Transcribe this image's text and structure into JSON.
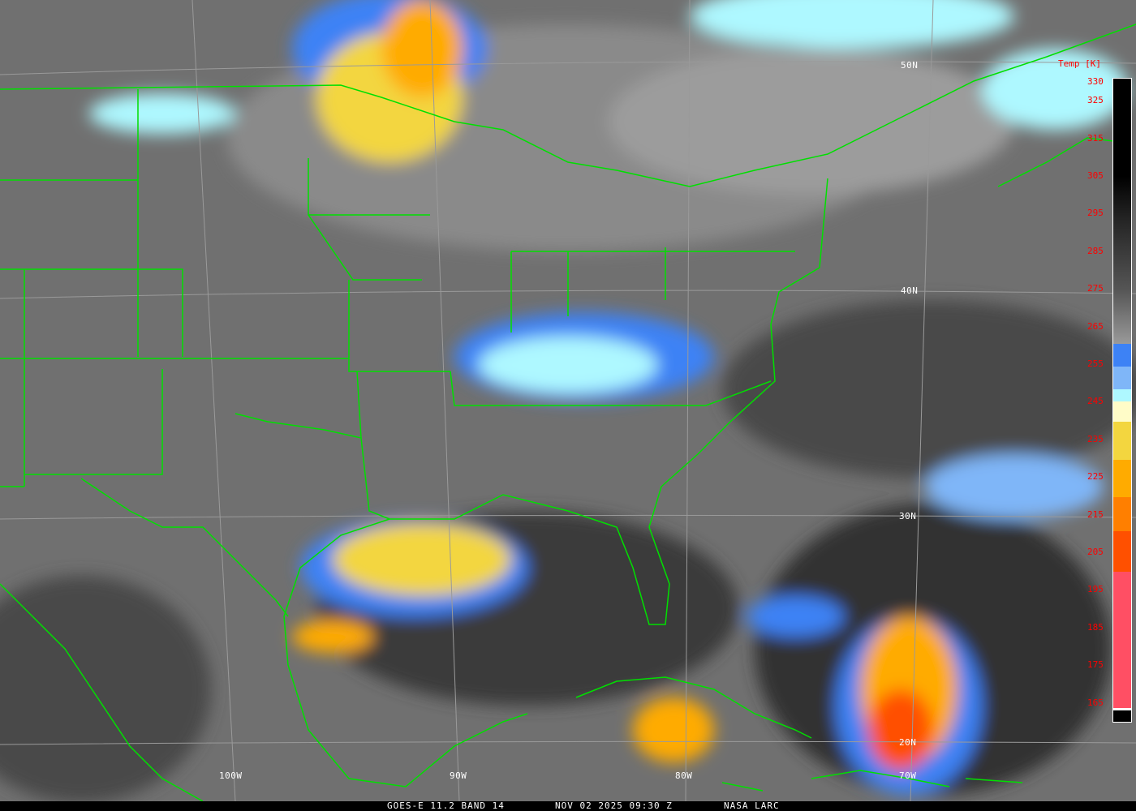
{
  "map": {
    "latitude_labels": [
      "50N",
      "40N",
      "30N",
      "20N"
    ],
    "longitude_labels": [
      "100W",
      "90W",
      "80W",
      "70W"
    ],
    "boundary_color": "#00e000",
    "grid_color": "#9a9a9a"
  },
  "legend": {
    "title": "Temp [K]",
    "ticks": [
      "330",
      "325",
      "315",
      "305",
      "295",
      "285",
      "275",
      "265",
      "255",
      "245",
      "235",
      "225",
      "215",
      "205",
      "195",
      "185",
      "175",
      "165"
    ],
    "colors": [
      "#000000",
      "#9a9a9a",
      "#3d82f5",
      "#7fb6f8",
      "#aef8ff",
      "#fffcc8",
      "#f3d63f",
      "#ffab00",
      "#ff7f00",
      "#ff5000",
      "#ff4f64"
    ]
  },
  "footer": {
    "product": "GOES-E 11.2 BAND 14",
    "datetime": "NOV 02 2025 09:30 Z",
    "source": "NASA LARC"
  }
}
